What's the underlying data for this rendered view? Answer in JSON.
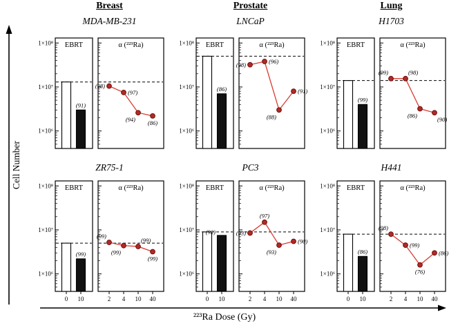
{
  "chart_data": {
    "type": "line",
    "figure_kind": "multi-panel log-scale bar + line figure",
    "y_axis": {
      "label": "Cell Number",
      "scale": "log",
      "range": [
        400000,
        130000000
      ],
      "ticks": [
        100000000,
        10000000,
        1000000
      ],
      "tick_labels": [
        "1×10⁸",
        "1×10⁷",
        "1×10⁶"
      ]
    },
    "x_axis": {
      "label": "²²³Ra Dose (Gy)",
      "ebrt_doses": [
        "0",
        "10"
      ],
      "alpha_doses": [
        "2",
        "4",
        "10",
        "40"
      ]
    },
    "panel_titles": {
      "ebrt": "EBRT",
      "alpha": "α (²²³Ra)"
    },
    "colors": {
      "marker_fill": "#b22a25",
      "marker_stroke": "#6e100d",
      "line": "#d93a30",
      "bar_white": "#ffffff",
      "bar_black": "#111111",
      "axis": "#000000"
    },
    "groups": [
      {
        "name": "Breast"
      },
      {
        "name": "Prostate"
      },
      {
        "name": "Lung"
      }
    ],
    "panels": [
      {
        "cell_line": "MDA-MB-231",
        "tissue": "Breast",
        "row": 0,
        "col": 0,
        "control_level": 13000000,
        "ebrt": {
          "type": "bar",
          "values": [
            13000000,
            3000000
          ],
          "survival_label": "(91)",
          "label_pos": "above"
        },
        "alpha": {
          "type": "line",
          "values": [
            10500000,
            7500000,
            2600000,
            2200000
          ],
          "labels": [
            "(98)",
            "(97)",
            "(94)",
            "(86)"
          ],
          "label_pos": [
            "left",
            "right",
            "below-left",
            "below"
          ]
        }
      },
      {
        "cell_line": "LNCaP",
        "tissue": "Prostate",
        "row": 0,
        "col": 1,
        "control_level": 50000000,
        "ebrt": {
          "type": "bar",
          "values": [
            50000000,
            7000000
          ],
          "survival_label": "(86)",
          "label_pos": "above"
        },
        "alpha": {
          "type": "line",
          "values": [
            32000000,
            38000000,
            3000000,
            8000000
          ],
          "labels": [
            "(98)",
            "(96)",
            "(88)",
            "(91)"
          ],
          "label_pos": [
            "left",
            "right",
            "below-left",
            "right"
          ]
        }
      },
      {
        "cell_line": "H1703",
        "tissue": "Lung",
        "row": 0,
        "col": 2,
        "control_level": 14000000,
        "ebrt": {
          "type": "bar",
          "values": [
            14000000,
            4000000
          ],
          "survival_label": "(99)",
          "label_pos": "above"
        },
        "alpha": {
          "type": "line",
          "values": [
            15500000,
            15500000,
            3200000,
            2600000
          ],
          "labels": [
            "(99)",
            "(98)",
            "(86)",
            "(90)"
          ],
          "label_pos": [
            "above-left",
            "above-right",
            "below-left",
            "below-right"
          ]
        }
      },
      {
        "cell_line": "ZR75-1",
        "tissue": "Breast",
        "row": 1,
        "col": 0,
        "control_level": 5000000,
        "ebrt": {
          "type": "bar",
          "values": [
            5000000,
            2200000
          ],
          "survival_label": "(99)",
          "label_pos": "above"
        },
        "alpha": {
          "type": "line",
          "values": [
            5200000,
            4400000,
            4200000,
            3200000
          ],
          "labels": [
            "(99)",
            "(99)",
            "(99)",
            "(99)"
          ],
          "label_pos": [
            "above-left",
            "below-left",
            "above-right",
            "below"
          ]
        }
      },
      {
        "cell_line": "PC3",
        "tissue": "Prostate",
        "row": 1,
        "col": 1,
        "control_level": 9000000,
        "ebrt": {
          "type": "bar",
          "values": [
            9000000,
            7500000
          ],
          "survival_label": "(92)",
          "label_pos": "left"
        },
        "alpha": {
          "type": "line",
          "values": [
            8500000,
            15000000,
            4500000,
            5500000
          ],
          "labels": [
            "(93)",
            "(97)",
            "(93)",
            "(90)"
          ],
          "label_pos": [
            "left",
            "above",
            "below-left",
            "right"
          ]
        }
      },
      {
        "cell_line": "H441",
        "tissue": "Lung",
        "row": 1,
        "col": 2,
        "control_level": 8000000,
        "ebrt": {
          "type": "bar",
          "values": [
            8000000,
            2500000
          ],
          "survival_label": "(86)",
          "label_pos": "above"
        },
        "alpha": {
          "type": "line",
          "values": [
            8000000,
            4500000,
            1600000,
            3000000
          ],
          "labels": [
            "(98)",
            "(99)",
            "(76)",
            "(86)"
          ],
          "label_pos": [
            "above-left",
            "right",
            "below",
            "right"
          ]
        }
      }
    ]
  }
}
